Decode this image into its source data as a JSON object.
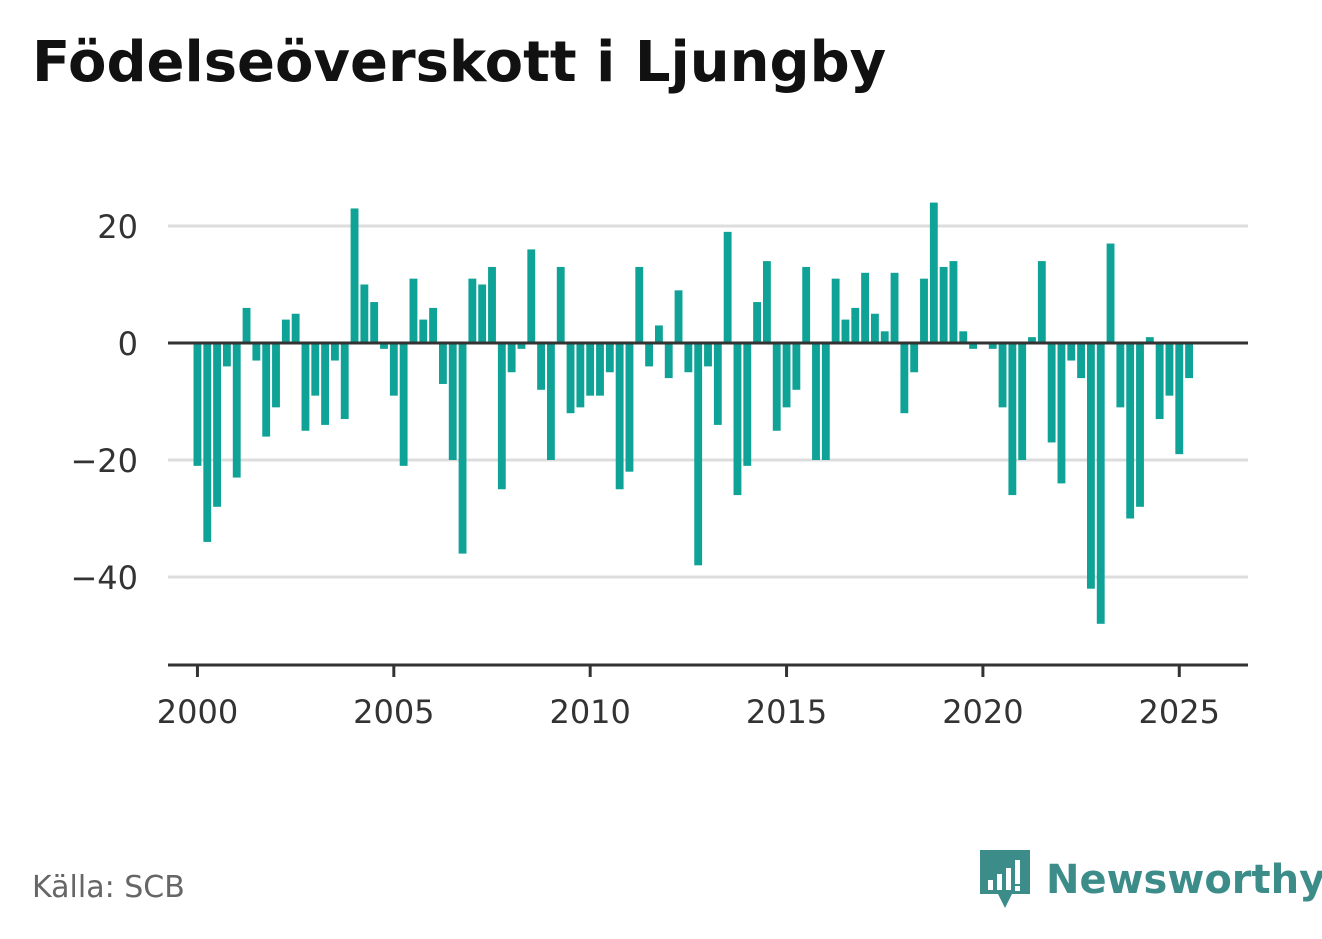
{
  "title": "Födelseöverskott i Ljungby",
  "source": "Källa: SCB",
  "brand": "Newsworthy",
  "colors": {
    "bar": "#0fa296",
    "brand": "#3c8c8a",
    "grid": "#dddddd",
    "axis": "#333333"
  },
  "chart_data": {
    "type": "bar",
    "title": "",
    "xlabel": "",
    "ylabel": "",
    "x_start": 2000.0,
    "x_step": 0.25,
    "xlim": [
      1999.25,
      2026.75
    ],
    "ylim": [
      -55,
      30
    ],
    "yticks": [
      20,
      0,
      -20,
      -40
    ],
    "ytick_labels": [
      "20",
      "0",
      "−20",
      "−40"
    ],
    "xticks": [
      2000,
      2005,
      2010,
      2015,
      2020,
      2025
    ],
    "xtick_labels": [
      "2000",
      "2005",
      "2010",
      "2015",
      "2020",
      "2025"
    ],
    "grid": true,
    "values": [
      -21,
      -34,
      -28,
      -4,
      -23,
      6,
      -3,
      -16,
      -11,
      4,
      5,
      -15,
      -9,
      -14,
      -3,
      -13,
      23,
      10,
      7,
      -1,
      -9,
      -21,
      11,
      4,
      6,
      -7,
      -20,
      -36,
      11,
      10,
      13,
      -25,
      -5,
      -1,
      16,
      -8,
      -20,
      13,
      -12,
      -11,
      -9,
      -9,
      -5,
      -25,
      -22,
      13,
      -4,
      3,
      -6,
      9,
      -5,
      -38,
      -4,
      -14,
      19,
      -26,
      -21,
      7,
      14,
      -15,
      -11,
      -8,
      13,
      -20,
      -20,
      11,
      4,
      6,
      12,
      5,
      2,
      12,
      -12,
      -5,
      11,
      24,
      13,
      14,
      2,
      -1,
      0,
      -1,
      -11,
      -26,
      -20,
      1,
      14,
      -17,
      -24,
      -3,
      -6,
      -42,
      -48,
      17,
      -11,
      -30,
      -28,
      1,
      -13,
      -9,
      -19,
      -6
    ]
  }
}
